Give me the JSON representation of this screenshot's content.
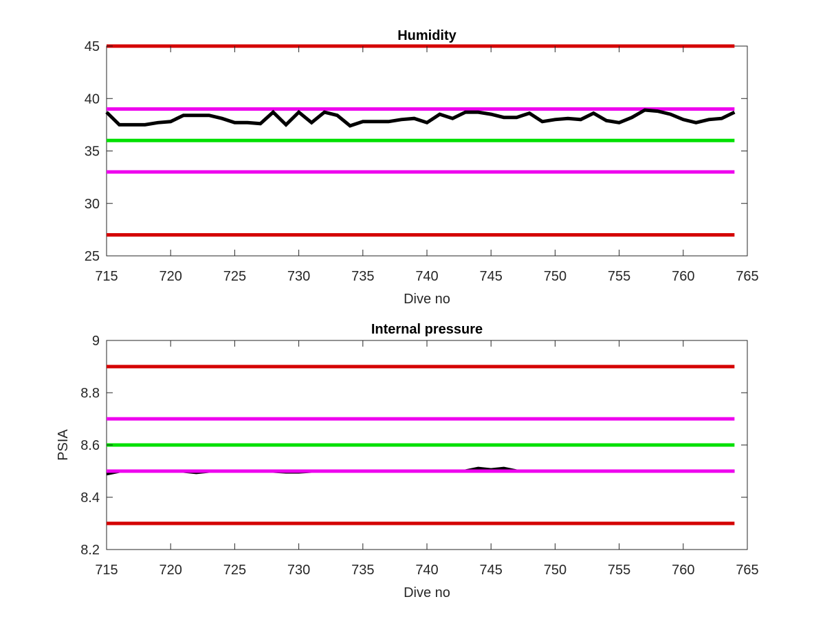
{
  "chart_data": [
    {
      "type": "line",
      "title": "Humidity",
      "xlabel": "Dive no",
      "ylabel": "",
      "xlim": [
        715,
        765
      ],
      "ylim": [
        25,
        45
      ],
      "xticks": [
        715,
        720,
        725,
        730,
        735,
        740,
        745,
        750,
        755,
        760,
        765
      ],
      "yticks": [
        25,
        30,
        35,
        40,
        45
      ],
      "grid": false,
      "legend": "none",
      "threshold_lines": [
        {
          "y": 45,
          "x_range": [
            715,
            764
          ],
          "color": "#d40000"
        },
        {
          "y": 39,
          "x_range": [
            715,
            764
          ],
          "color": "#ee00ee"
        },
        {
          "y": 36,
          "x_range": [
            715,
            764
          ],
          "color": "#00e000"
        },
        {
          "y": 33,
          "x_range": [
            715,
            764
          ],
          "color": "#ee00ee"
        },
        {
          "y": 27,
          "x_range": [
            715,
            764
          ],
          "color": "#d40000"
        }
      ],
      "series": [
        {
          "color": "#000000",
          "x": [
            715,
            716,
            717,
            718,
            719,
            720,
            721,
            722,
            723,
            724,
            725,
            726,
            727,
            728,
            729,
            730,
            731,
            732,
            733,
            734,
            735,
            736,
            737,
            738,
            739,
            740,
            741,
            742,
            743,
            744,
            745,
            746,
            747,
            748,
            749,
            750,
            751,
            752,
            753,
            754,
            755,
            756,
            757,
            758,
            759,
            760,
            761,
            762,
            763,
            764
          ],
          "values": [
            38.7,
            37.5,
            37.5,
            37.5,
            37.7,
            37.8,
            38.4,
            38.4,
            38.4,
            38.1,
            37.7,
            37.7,
            37.6,
            38.7,
            37.5,
            38.7,
            37.7,
            38.7,
            38.4,
            37.4,
            37.8,
            37.8,
            37.8,
            38.0,
            38.1,
            37.7,
            38.5,
            38.1,
            38.7,
            38.7,
            38.5,
            38.2,
            38.2,
            38.6,
            37.8,
            38.0,
            38.1,
            38.0,
            38.6,
            37.9,
            37.7,
            38.2,
            38.9,
            38.8,
            38.5,
            38.0,
            37.7,
            38.0,
            38.1,
            38.7
          ]
        }
      ]
    },
    {
      "type": "line",
      "title": "Internal pressure",
      "xlabel": "Dive no",
      "ylabel": "PSIA",
      "xlim": [
        715,
        765
      ],
      "ylim": [
        8.2,
        9
      ],
      "xticks": [
        715,
        720,
        725,
        730,
        735,
        740,
        745,
        750,
        755,
        760,
        765
      ],
      "yticks": [
        8.2,
        8.4,
        8.6,
        8.8,
        9
      ],
      "grid": false,
      "legend": "none",
      "threshold_lines": [
        {
          "y": 8.9,
          "x_range": [
            715,
            764
          ],
          "color": "#d40000"
        },
        {
          "y": 8.7,
          "x_range": [
            715,
            764
          ],
          "color": "#ee00ee"
        },
        {
          "y": 8.6,
          "x_range": [
            715,
            764
          ],
          "color": "#00e000"
        },
        {
          "y": 8.3,
          "x_range": [
            715,
            764
          ],
          "color": "#d40000"
        }
      ],
      "series": [
        {
          "color": "#000000",
          "x": [
            715,
            716,
            717,
            718,
            719,
            720,
            721,
            722,
            723,
            724,
            725,
            726,
            727,
            728,
            729,
            730,
            731,
            732,
            733,
            734,
            735,
            736,
            737,
            738,
            739,
            740,
            741,
            742,
            743,
            744,
            745,
            746,
            747,
            748,
            749,
            750,
            751,
            752,
            753,
            754,
            755,
            756,
            757,
            758,
            759,
            760,
            761,
            762,
            763,
            764
          ],
          "values": [
            8.49,
            8.5,
            8.5,
            8.5,
            8.5,
            8.5,
            8.5,
            8.495,
            8.5,
            8.5,
            8.5,
            8.5,
            8.5,
            8.5,
            8.497,
            8.497,
            8.5,
            8.5,
            8.5,
            8.5,
            8.5,
            8.5,
            8.5,
            8.5,
            8.5,
            8.5,
            8.5,
            8.5,
            8.5,
            8.51,
            8.505,
            8.51,
            8.5,
            8.5,
            8.5,
            8.5,
            8.5,
            8.5,
            8.5,
            8.5,
            8.5,
            8.5,
            8.5,
            8.5,
            8.5,
            8.5,
            8.5,
            8.5,
            8.5,
            8.5
          ]
        },
        {
          "color": "#ee00ee",
          "x": [
            715,
            764
          ],
          "values": [
            8.5,
            8.5
          ]
        }
      ]
    }
  ]
}
